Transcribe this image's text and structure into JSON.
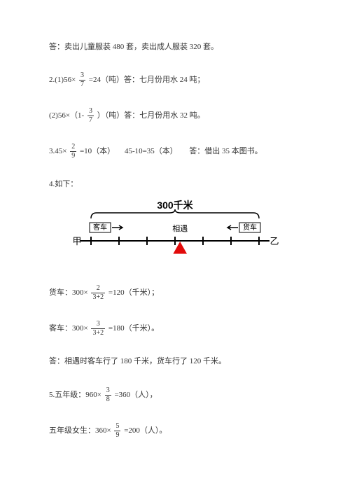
{
  "lines": {
    "l1": "答：卖出儿童服装 480 套，卖出成人服装 320 套。",
    "l2a": "2.(1)56×",
    "l2b": "=24（吨）答：七月份用水 24 吨；",
    "l3a": "(2)56×（1-",
    "l3b": "）（吨）答：七月份用水 32 吨。",
    "l4a": "3.45×",
    "l4b": "=10（本）",
    "l4c": "45-10=35（本）",
    "l4d": "答：借出 35 本图书。",
    "l5": "4.如下：",
    "l6a": "货车：300×",
    "l6b": "=120（千米）；",
    "l7a": "客车：300×",
    "l7b": "=180（千米）。",
    "l8": "答：相遇时客车行了 180 千米，货车行了 120 千米。",
    "l9a": "5.五年级：960×",
    "l9b": "=360（人），",
    "l10a": "五年级女生：360×",
    "l10b": "=200（人）。"
  },
  "fracs": {
    "f37": {
      "n": "3",
      "d": "7"
    },
    "f29": {
      "n": "2",
      "d": "9"
    },
    "f232": {
      "n": "2",
      "d": "3+2"
    },
    "f332": {
      "n": "3",
      "d": "3+2"
    },
    "f38": {
      "n": "3",
      "d": "8"
    },
    "f59": {
      "n": "5",
      "d": "9"
    }
  },
  "diagram": {
    "title": "300千米",
    "left_label": "客车",
    "right_label": "货车",
    "meet": "相遇",
    "left_end": "甲",
    "right_end": "乙",
    "title_fontsize": 14,
    "label_fontsize": 10,
    "end_fontsize": 13,
    "line_color": "#000000",
    "triangle_color": "#e20a0a",
    "background": "#ffffff",
    "ticks": 7,
    "triangle_pos_ratio": 0.53
  }
}
